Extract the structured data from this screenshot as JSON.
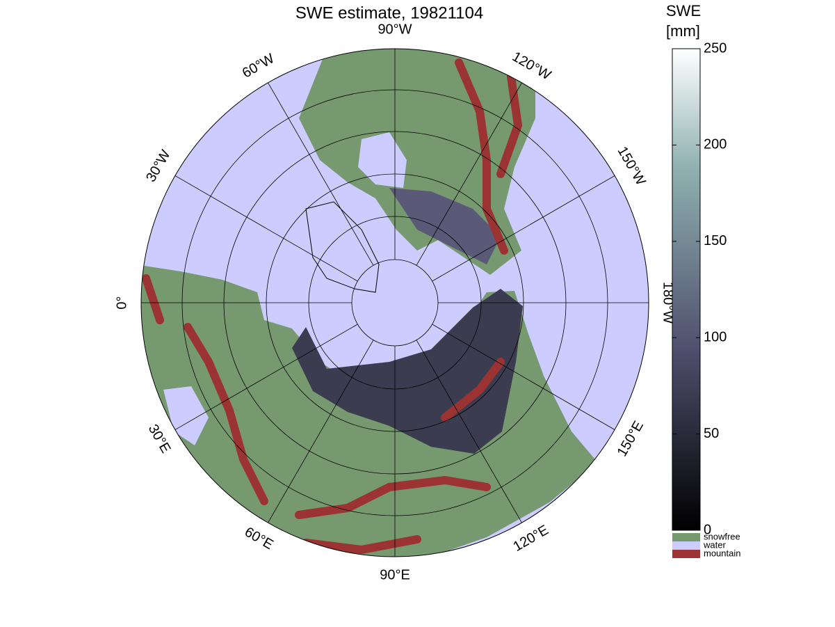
{
  "title": "SWE estimate, 19821104",
  "map": {
    "meridian_labels": [
      "0°",
      "30°W",
      "60°W",
      "90°W",
      "120°W",
      "150°W",
      "180°W",
      "150°E",
      "120°E",
      "90°E",
      "60°E",
      "30°E"
    ]
  },
  "colorbar": {
    "title": [
      "SWE",
      "[mm]"
    ],
    "lim": [
      0,
      250
    ],
    "ticks": [
      0,
      50,
      100,
      150,
      200,
      250
    ],
    "legend": [
      {
        "name": "snowfree",
        "color": "#77996f"
      },
      {
        "name": "water",
        "color": "#ccccff"
      },
      {
        "name": "mountain",
        "color": "#9b3333"
      }
    ]
  }
}
